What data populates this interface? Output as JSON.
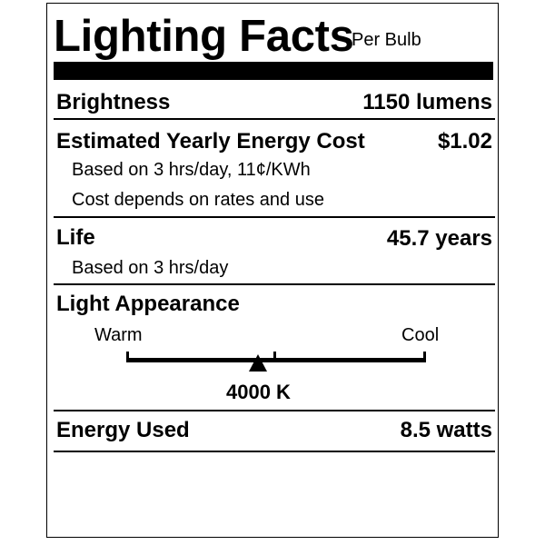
{
  "header": {
    "title": "Lighting Facts",
    "subtitle": "Per Bulb"
  },
  "brightness": {
    "label": "Brightness",
    "value": "1150 lumens"
  },
  "energy_cost": {
    "label": "Estimated Yearly Energy Cost",
    "value": "$1.02",
    "note1": "Based on 3 hrs/day, 11¢/KWh",
    "note2": "Cost depends on rates and use"
  },
  "life": {
    "label": "Life",
    "value": "45.7 years",
    "note": "Based on 3 hrs/day"
  },
  "light_appearance": {
    "label": "Light Appearance",
    "warm_label": "Warm",
    "cool_label": "Cool",
    "value": "4000 K",
    "scale_position_fraction": 0.44
  },
  "energy_used": {
    "label": "Energy Used",
    "value": "8.5 watts"
  }
}
